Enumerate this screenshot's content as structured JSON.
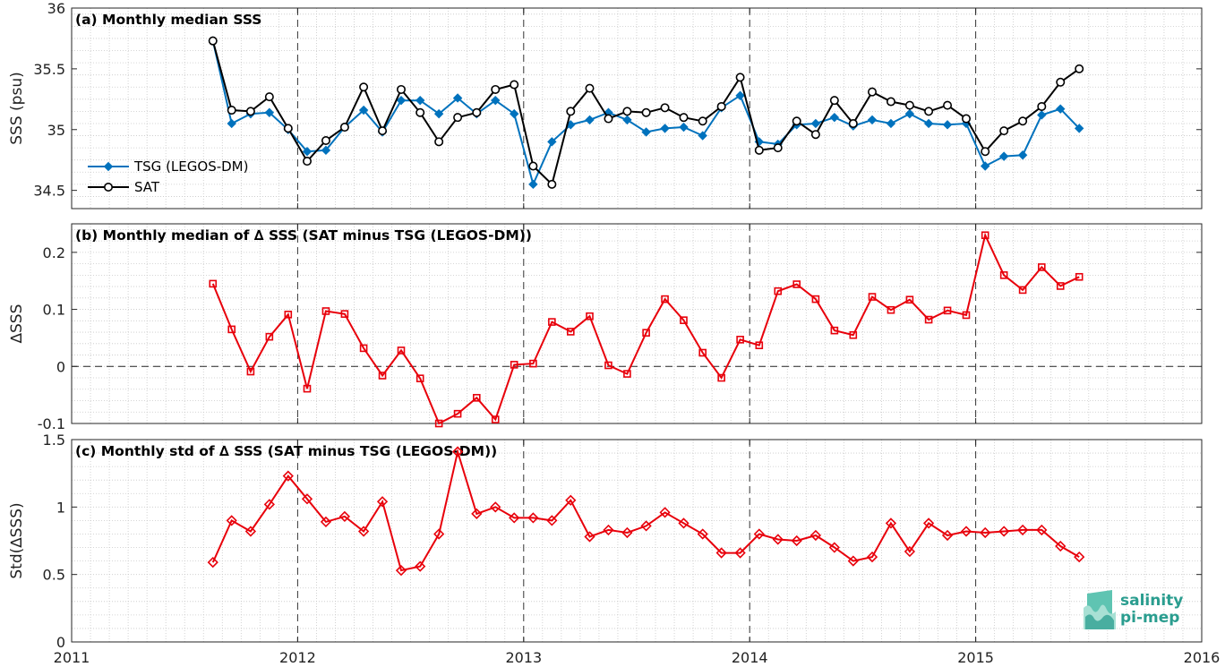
{
  "colors": {
    "tsg": "#0072BD",
    "sat": "#000000",
    "delta": "#E8000B",
    "grid": "#c8c8c8",
    "logo": "#2a9d8f"
  },
  "x_tick_labels": [
    "2011",
    "2012",
    "2013",
    "2014",
    "2015",
    "2016"
  ],
  "logo": {
    "line1": "salinity",
    "line2": "pi-mep",
    "icon": "salinity-pimep-logo-icon"
  },
  "chart_data": [
    {
      "type": "line",
      "title": "(a) Monthly median SSS",
      "ylabel": "SSS (psu)",
      "xlim": [
        2011,
        2016
      ],
      "ylim": [
        34.35,
        36
      ],
      "yticks": [
        34.5,
        35,
        35.5,
        36
      ],
      "ytick_labels": [
        "34.5",
        "35",
        "35.5",
        "36"
      ],
      "grid": "minor dotted",
      "year_separators": "dashed",
      "legend_position": "lower-left",
      "x": [
        2011.625,
        2011.708,
        2011.792,
        2011.875,
        2011.958,
        2012.042,
        2012.125,
        2012.208,
        2012.292,
        2012.375,
        2012.458,
        2012.542,
        2012.625,
        2012.708,
        2012.792,
        2012.875,
        2012.958,
        2013.042,
        2013.125,
        2013.208,
        2013.292,
        2013.375,
        2013.458,
        2013.542,
        2013.625,
        2013.708,
        2013.792,
        2013.875,
        2013.958,
        2014.042,
        2014.125,
        2014.208,
        2014.292,
        2014.375,
        2014.458,
        2014.542,
        2014.625,
        2014.708,
        2014.792,
        2014.875,
        2014.958,
        2015.042,
        2015.125,
        2015.208,
        2015.292,
        2015.375,
        2015.458
      ],
      "series": [
        {
          "name": "TSG (LEGOS-DM)",
          "marker": "diamond",
          "values": [
            35.73,
            35.05,
            35.13,
            35.14,
            35.0,
            34.82,
            34.83,
            35.02,
            35.16,
            34.98,
            35.24,
            35.24,
            35.13,
            35.26,
            35.13,
            35.24,
            35.13,
            34.55,
            34.9,
            35.04,
            35.08,
            35.14,
            35.08,
            34.98,
            35.01,
            35.02,
            34.95,
            35.18,
            35.28,
            34.9,
            34.88,
            35.04,
            35.05,
            35.1,
            35.03,
            35.08,
            35.05,
            35.13,
            35.05,
            35.04,
            35.05,
            34.7,
            34.78,
            34.79,
            35.12,
            35.17,
            35.01
          ]
        },
        {
          "name": "SAT",
          "marker": "circle",
          "values": [
            35.73,
            35.16,
            35.15,
            35.27,
            35.01,
            34.74,
            34.91,
            35.02,
            35.35,
            34.99,
            35.33,
            35.14,
            34.9,
            35.1,
            35.14,
            35.33,
            35.37,
            34.7,
            34.55,
            35.15,
            35.34,
            35.09,
            35.15,
            35.14,
            35.18,
            35.1,
            35.07,
            35.19,
            35.43,
            34.83,
            34.85,
            35.07,
            34.96,
            35.24,
            35.05,
            35.31,
            35.23,
            35.2,
            35.15,
            35.2,
            35.09,
            34.82,
            34.99,
            35.07,
            35.19,
            35.39,
            35.5
          ]
        }
      ]
    },
    {
      "type": "line",
      "title": "(b) Monthly median of ∆ SSS (SAT minus TSG (LEGOS-DM))",
      "ylabel": "∆SSS",
      "xlim": [
        2011,
        2016
      ],
      "ylim": [
        -0.1,
        0.25
      ],
      "yticks": [
        -0.1,
        0,
        0.1,
        0.2
      ],
      "ytick_labels": [
        "-0.1",
        "0",
        "0.1",
        "0.2"
      ],
      "grid": "minor dotted",
      "zero_line": "dashed",
      "x": [
        2011.625,
        2011.708,
        2011.792,
        2011.875,
        2011.958,
        2012.042,
        2012.125,
        2012.208,
        2012.292,
        2012.375,
        2012.458,
        2012.542,
        2012.625,
        2012.708,
        2012.792,
        2012.875,
        2012.958,
        2013.042,
        2013.125,
        2013.208,
        2013.292,
        2013.375,
        2013.458,
        2013.542,
        2013.625,
        2013.708,
        2013.792,
        2013.875,
        2013.958,
        2014.042,
        2014.125,
        2014.208,
        2014.292,
        2014.375,
        2014.458,
        2014.542,
        2014.625,
        2014.708,
        2014.792,
        2014.875,
        2014.958,
        2015.042,
        2015.125,
        2015.208,
        2015.292,
        2015.375,
        2015.458
      ],
      "series": [
        {
          "marker": "square",
          "values": [
            0.145,
            0.065,
            -0.009,
            0.052,
            0.091,
            -0.039,
            0.097,
            0.092,
            0.032,
            -0.016,
            0.028,
            -0.021,
            -0.1,
            -0.083,
            -0.055,
            -0.093,
            0.003,
            0.005,
            0.078,
            0.061,
            0.088,
            0.002,
            -0.013,
            0.059,
            0.118,
            0.081,
            0.024,
            -0.02,
            0.047,
            0.037,
            0.132,
            0.144,
            0.118,
            0.063,
            0.055,
            0.122,
            0.099,
            0.117,
            0.082,
            0.098,
            0.09,
            0.23,
            0.16,
            0.134,
            0.174,
            0.141,
            0.157
          ]
        }
      ]
    },
    {
      "type": "line",
      "title": "(c) Monthly std of ∆ SSS (SAT minus TSG (LEGOS-DM))",
      "ylabel": "Std(∆SSS)",
      "xlim": [
        2011,
        2016
      ],
      "ylim": [
        0,
        1.5
      ],
      "yticks": [
        0,
        0.5,
        1,
        1.5
      ],
      "ytick_labels": [
        "0",
        "0.5",
        "1",
        "1.5"
      ],
      "grid": "minor dotted",
      "x": [
        2011.625,
        2011.708,
        2011.792,
        2011.875,
        2011.958,
        2012.042,
        2012.125,
        2012.208,
        2012.292,
        2012.375,
        2012.458,
        2012.542,
        2012.625,
        2012.708,
        2012.792,
        2012.875,
        2012.958,
        2013.042,
        2013.125,
        2013.208,
        2013.292,
        2013.375,
        2013.458,
        2013.542,
        2013.625,
        2013.708,
        2013.792,
        2013.875,
        2013.958,
        2014.042,
        2014.125,
        2014.208,
        2014.292,
        2014.375,
        2014.458,
        2014.542,
        2014.625,
        2014.708,
        2014.792,
        2014.875,
        2014.958,
        2015.042,
        2015.125,
        2015.208,
        2015.292,
        2015.375,
        2015.458
      ],
      "series": [
        {
          "marker": "diamond",
          "values": [
            0.59,
            0.9,
            0.82,
            1.02,
            1.23,
            1.06,
            0.89,
            0.93,
            0.82,
            1.04,
            0.53,
            0.56,
            0.8,
            1.41,
            0.95,
            1.0,
            0.92,
            0.92,
            0.9,
            1.05,
            0.78,
            0.83,
            0.81,
            0.86,
            0.96,
            0.88,
            0.8,
            0.66,
            0.66,
            0.8,
            0.76,
            0.75,
            0.79,
            0.7,
            0.6,
            0.63,
            0.88,
            0.67,
            0.88,
            0.79,
            0.82,
            0.81,
            0.82,
            0.83,
            0.83,
            0.71,
            0.63
          ]
        }
      ]
    }
  ]
}
